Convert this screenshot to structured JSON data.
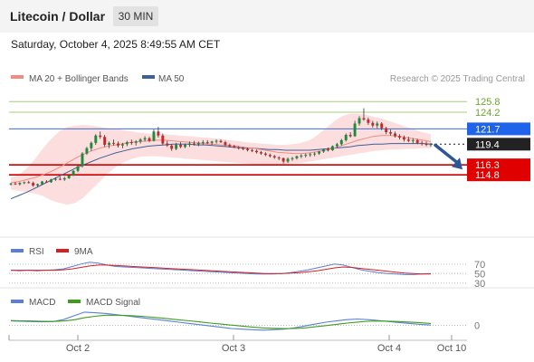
{
  "header": {
    "title": "Litecoin / Dollar",
    "timeframe": "30 MIN",
    "datetime": "Saturday, October 4, 2025 8:49:55 AM CET"
  },
  "legend": {
    "ma20_label": "MA 20 + Bollinger Bands",
    "ma50_label": "MA 50",
    "copyright": "Research © 2025 Trading Central",
    "ma20_color": "#f28b82",
    "ma50_color": "#3d5f9a"
  },
  "colors": {
    "candle_up": "#1f8a3a",
    "candle_down": "#c62828",
    "band_fill": "#fbd3d3",
    "resistance_line": "#3a6fd8",
    "support_line": "#cc0000",
    "target_line": "#a6cf7a",
    "current_price": "#222222",
    "arrow": "#2e5597"
  },
  "chart_data": [
    {
      "type": "candlestick",
      "title": "Litecoin / Dollar",
      "ylim": [
        106,
        128
      ],
      "x_ticks": [
        "Oct 2",
        "Oct 3",
        "Oct 4",
        "Oct 10"
      ],
      "candles": [
        [
          113.4,
          113.6,
          113.2,
          113.5
        ],
        [
          113.5,
          113.7,
          113.3,
          113.4
        ],
        [
          113.4,
          113.7,
          113.2,
          113.6
        ],
        [
          113.6,
          113.8,
          113.4,
          113.7
        ],
        [
          113.7,
          113.9,
          113.5,
          113.6
        ],
        [
          113.6,
          113.8,
          113.0,
          113.2
        ],
        [
          113.2,
          113.5,
          113.0,
          113.4
        ],
        [
          113.4,
          113.9,
          113.3,
          113.8
        ],
        [
          113.8,
          114.0,
          113.6,
          113.7
        ],
        [
          113.7,
          114.2,
          113.6,
          114.1
        ],
        [
          114.1,
          114.4,
          113.9,
          114.2
        ],
        [
          114.2,
          114.5,
          114.0,
          114.1
        ],
        [
          114.1,
          114.5,
          113.9,
          114.3
        ],
        [
          114.3,
          114.8,
          114.2,
          114.7
        ],
        [
          114.7,
          115.5,
          114.6,
          115.4
        ],
        [
          115.4,
          116.3,
          115.2,
          116.1
        ],
        [
          116.1,
          118.2,
          115.9,
          118.0
        ],
        [
          118.0,
          119.0,
          117.8,
          118.8
        ],
        [
          118.8,
          119.8,
          118.4,
          119.6
        ],
        [
          119.6,
          120.9,
          119.3,
          120.7
        ],
        [
          120.7,
          121.3,
          120.2,
          120.5
        ],
        [
          120.5,
          120.8,
          119.0,
          119.3
        ],
        [
          119.3,
          119.8,
          118.8,
          119.6
        ],
        [
          119.6,
          120.1,
          119.2,
          119.5
        ],
        [
          119.5,
          119.8,
          118.9,
          119.2
        ],
        [
          119.2,
          119.6,
          118.8,
          119.4
        ],
        [
          119.4,
          119.9,
          119.1,
          119.7
        ],
        [
          119.7,
          120.1,
          119.3,
          119.6
        ],
        [
          119.6,
          120.0,
          119.2,
          119.8
        ],
        [
          119.8,
          120.3,
          119.5,
          120.1
        ],
        [
          120.1,
          120.6,
          119.8,
          120.3
        ],
        [
          120.3,
          120.5,
          119.7,
          119.9
        ],
        [
          119.9,
          121.6,
          119.8,
          121.3
        ],
        [
          121.3,
          122.0,
          120.4,
          120.7
        ],
        [
          120.7,
          121.0,
          119.3,
          119.5
        ],
        [
          119.5,
          119.9,
          119.0,
          119.2
        ],
        [
          119.2,
          119.4,
          118.4,
          118.7
        ],
        [
          118.7,
          119.6,
          118.5,
          119.3
        ],
        [
          119.3,
          119.7,
          118.8,
          119.0
        ],
        [
          119.0,
          119.5,
          118.8,
          119.3
        ],
        [
          119.3,
          119.8,
          119.0,
          119.5
        ],
        [
          119.5,
          119.9,
          119.2,
          119.4
        ],
        [
          119.4,
          119.8,
          119.1,
          119.6
        ],
        [
          119.6,
          120.0,
          119.3,
          119.7
        ],
        [
          119.7,
          120.0,
          119.4,
          119.6
        ],
        [
          119.6,
          119.9,
          119.3,
          119.8
        ],
        [
          119.8,
          120.1,
          119.5,
          119.9
        ],
        [
          119.9,
          120.1,
          119.6,
          119.7
        ],
        [
          119.7,
          119.9,
          119.1,
          119.3
        ],
        [
          119.3,
          119.5,
          118.9,
          119.1
        ],
        [
          119.1,
          119.3,
          118.8,
          118.9
        ],
        [
          118.9,
          119.1,
          118.6,
          118.8
        ],
        [
          118.8,
          119.0,
          118.5,
          118.7
        ],
        [
          118.7,
          118.9,
          118.3,
          118.5
        ],
        [
          118.5,
          118.7,
          118.2,
          118.4
        ],
        [
          118.4,
          118.6,
          118.0,
          118.2
        ],
        [
          118.2,
          118.4,
          117.8,
          118.0
        ],
        [
          118.0,
          118.2,
          117.6,
          117.8
        ],
        [
          117.8,
          118.0,
          117.4,
          117.6
        ],
        [
          117.6,
          117.8,
          117.2,
          117.4
        ],
        [
          117.4,
          117.6,
          117.0,
          117.3
        ],
        [
          117.3,
          117.4,
          116.5,
          116.8
        ],
        [
          116.8,
          117.4,
          116.6,
          117.2
        ],
        [
          117.2,
          117.5,
          116.9,
          117.3
        ],
        [
          117.3,
          117.7,
          117.1,
          117.6
        ],
        [
          117.6,
          117.9,
          117.3,
          117.7
        ],
        [
          117.7,
          118.0,
          117.4,
          117.8
        ],
        [
          117.8,
          118.1,
          117.5,
          117.9
        ],
        [
          117.9,
          118.2,
          117.6,
          118.0
        ],
        [
          118.0,
          118.4,
          117.8,
          118.3
        ],
        [
          118.3,
          118.7,
          118.1,
          118.6
        ],
        [
          118.6,
          118.9,
          118.3,
          118.5
        ],
        [
          118.5,
          119.2,
          118.4,
          119.1
        ],
        [
          119.1,
          119.6,
          118.9,
          119.4
        ],
        [
          119.4,
          120.2,
          119.2,
          120.0
        ],
        [
          120.0,
          121.0,
          119.8,
          120.8
        ],
        [
          120.8,
          121.2,
          120.4,
          120.6
        ],
        [
          120.6,
          122.9,
          120.5,
          122.5
        ],
        [
          122.5,
          123.6,
          122.2,
          123.3
        ],
        [
          123.3,
          124.8,
          122.9,
          123.1
        ],
        [
          123.1,
          123.4,
          122.3,
          122.6
        ],
        [
          122.6,
          122.9,
          121.9,
          122.2
        ],
        [
          122.2,
          122.8,
          121.8,
          122.5
        ],
        [
          122.5,
          122.7,
          121.5,
          121.8
        ],
        [
          121.8,
          122.0,
          120.9,
          121.2
        ],
        [
          121.2,
          121.6,
          120.7,
          121.0
        ],
        [
          121.0,
          121.3,
          120.4,
          120.6
        ],
        [
          120.6,
          120.9,
          120.1,
          120.4
        ],
        [
          120.4,
          120.7,
          119.8,
          120.1
        ],
        [
          120.1,
          120.5,
          119.7,
          119.9
        ],
        [
          119.9,
          120.3,
          119.5,
          120.0
        ],
        [
          120.0,
          120.2,
          119.4,
          119.6
        ],
        [
          119.6,
          119.9,
          119.2,
          119.5
        ],
        [
          119.5,
          119.8,
          119.1,
          119.3
        ],
        [
          119.3,
          119.6,
          119.0,
          119.4
        ]
      ],
      "ma20": [
        113.6,
        113.8,
        114.1,
        114.4,
        114.8,
        115.3,
        115.9,
        116.6,
        117.3,
        117.9,
        118.4,
        118.8,
        119.1,
        119.3,
        119.5,
        119.7,
        119.8,
        119.9,
        120.0,
        120.0,
        119.9,
        119.8,
        119.7,
        119.6,
        119.5,
        119.4,
        119.3,
        119.2,
        119.1,
        118.9,
        118.8,
        118.6,
        118.4,
        118.2,
        118.1,
        118.0,
        118.0,
        118.1,
        118.3,
        118.5,
        118.8,
        119.2,
        119.6,
        120.0,
        120.3,
        120.6,
        120.7,
        120.7,
        120.6,
        120.4,
        120.2,
        120.0,
        119.8
      ],
      "ma50": [
        111.2,
        111.7,
        112.2,
        112.8,
        113.4,
        114.0,
        114.6,
        115.2,
        115.8,
        116.3,
        116.8,
        117.3,
        117.7,
        118.1,
        118.4,
        118.7,
        118.9,
        119.1,
        119.2,
        119.3,
        119.4,
        119.4,
        119.4,
        119.3,
        119.3,
        119.2,
        119.1,
        119.0,
        118.9,
        118.8,
        118.8,
        118.7,
        118.6,
        118.6,
        118.5,
        118.5,
        118.5,
        118.5,
        118.6,
        118.7,
        118.8,
        118.9,
        119.0,
        119.2,
        119.3,
        119.4,
        119.4,
        119.5,
        119.5,
        119.5,
        119.5,
        119.5,
        119.4
      ],
      "bb_upper": [
        114.4,
        114.8,
        115.8,
        117.2,
        118.8,
        120.2,
        121.3,
        122.0,
        122.2,
        122.3,
        122.2,
        122.0,
        121.8,
        121.7,
        121.5,
        121.3,
        121.1,
        121.0,
        120.9,
        120.9,
        120.8,
        120.7,
        120.6,
        120.5,
        120.4,
        120.3,
        120.2,
        120.0,
        119.9,
        119.7,
        119.6,
        119.5,
        119.4,
        119.3,
        119.3,
        119.4,
        119.6,
        120.0,
        120.8,
        121.8,
        122.8,
        123.6,
        124.0,
        124.0,
        123.8,
        123.5,
        123.2,
        122.8,
        122.4,
        122.0,
        121.6,
        121.2,
        120.9
      ],
      "bb_lower": [
        112.6,
        112.4,
        112.2,
        112.0,
        111.6,
        111.0,
        110.6,
        110.3,
        110.6,
        111.4,
        112.6,
        113.8,
        115.0,
        116.0,
        116.7,
        117.2,
        117.5,
        117.6,
        117.6,
        117.5,
        117.4,
        117.3,
        117.2,
        117.1,
        117.0,
        116.9,
        116.8,
        116.7,
        116.6,
        116.5,
        116.4,
        116.4,
        116.3,
        116.3,
        116.4,
        116.5,
        116.6,
        116.8,
        117.0,
        117.2,
        117.4,
        117.6,
        117.8,
        118.0,
        118.2,
        118.4,
        118.5,
        118.6,
        118.6,
        118.7,
        118.7,
        118.8,
        118.8
      ],
      "levels": [
        {
          "value": 125.8,
          "label": "125.8",
          "role": "target"
        },
        {
          "value": 124.2,
          "label": "124.2",
          "role": "target"
        },
        {
          "value": 121.7,
          "label": "121.7",
          "role": "resistance"
        },
        {
          "value": 119.4,
          "label": "119.4",
          "role": "current"
        },
        {
          "value": 116.3,
          "label": "116.3",
          "role": "support"
        },
        {
          "value": 114.8,
          "label": "114.8",
          "role": "support"
        }
      ],
      "projection": {
        "from": 119.4,
        "to": 115.6
      }
    },
    {
      "type": "line",
      "name": "RSI panel",
      "legend": [
        "RSI",
        "9MA"
      ],
      "colors": [
        "#5b7fd9",
        "#d42020"
      ],
      "ylim": [
        20,
        85
      ],
      "levels": [
        70,
        50,
        30
      ],
      "level_labels": [
        "70",
        "50",
        "30"
      ],
      "series": [
        {
          "name": "RSI",
          "values": [
            57,
            56,
            57,
            56,
            57,
            58,
            60,
            65,
            70,
            74,
            72,
            68,
            65,
            64,
            63,
            62,
            61,
            60,
            59,
            58,
            57,
            56,
            55,
            54,
            53,
            52,
            51,
            50,
            49,
            49,
            49,
            50,
            52,
            55,
            58,
            62,
            66,
            70,
            68,
            63,
            58,
            55,
            52,
            50,
            49,
            48,
            48,
            49,
            50
          ]
        },
        {
          "name": "9MA",
          "values": [
            57,
            57,
            57,
            57,
            57,
            57,
            58,
            60,
            63,
            66,
            68,
            68,
            67,
            66,
            65,
            64,
            63,
            62,
            61,
            60,
            59,
            58,
            57,
            56,
            55,
            54,
            53,
            52,
            51,
            50,
            50,
            50,
            51,
            52,
            54,
            56,
            59,
            62,
            64,
            63,
            61,
            59,
            57,
            55,
            53,
            51,
            50,
            49,
            49
          ]
        }
      ]
    },
    {
      "type": "line",
      "name": "MACD panel",
      "legend": [
        "MACD",
        "MACD Signal"
      ],
      "colors": [
        "#5b7fd9",
        "#3f9d1c"
      ],
      "ylim": [
        -0.9,
        1.4
      ],
      "levels": [
        0
      ],
      "level_labels": [
        "0"
      ],
      "series": [
        {
          "name": "MACD",
          "values": [
            0.35,
            0.32,
            0.3,
            0.28,
            0.3,
            0.45,
            0.75,
            1.05,
            1.0,
            0.95,
            0.85,
            0.75,
            0.65,
            0.55,
            0.45,
            0.35,
            0.25,
            0.15,
            0.05,
            -0.05,
            -0.15,
            -0.25,
            -0.3,
            -0.35,
            -0.38,
            -0.35,
            -0.3,
            -0.2,
            -0.05,
            0.1,
            0.25,
            0.35,
            0.45,
            0.5,
            0.45,
            0.38,
            0.3,
            0.22,
            0.15,
            0.08,
            0.02
          ]
        },
        {
          "name": "MACD Signal",
          "values": [
            0.38,
            0.36,
            0.34,
            0.32,
            0.31,
            0.34,
            0.44,
            0.6,
            0.72,
            0.8,
            0.8,
            0.78,
            0.74,
            0.68,
            0.6,
            0.52,
            0.44,
            0.36,
            0.27,
            0.18,
            0.1,
            0.02,
            -0.06,
            -0.14,
            -0.2,
            -0.24,
            -0.26,
            -0.25,
            -0.2,
            -0.12,
            -0.02,
            0.08,
            0.18,
            0.26,
            0.32,
            0.34,
            0.33,
            0.3,
            0.26,
            0.21,
            0.15
          ]
        }
      ]
    }
  ]
}
